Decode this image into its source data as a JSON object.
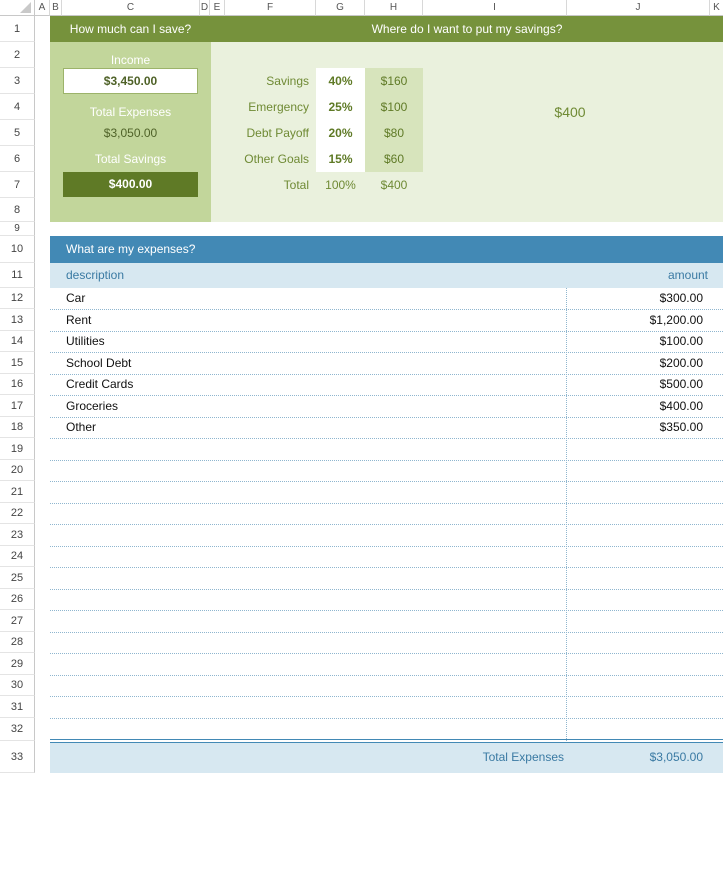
{
  "columns": [
    "A",
    "B",
    "C",
    "D",
    "E",
    "F",
    "G",
    "H",
    "I",
    "J",
    "K"
  ],
  "rows": [
    "1",
    "2",
    "3",
    "4",
    "5",
    "6",
    "7",
    "8",
    "9",
    "10",
    "11",
    "12",
    "13",
    "14",
    "15",
    "16",
    "17",
    "18",
    "19",
    "20",
    "21",
    "22",
    "23",
    "24",
    "25",
    "26",
    "27",
    "28",
    "29",
    "30",
    "31",
    "32",
    "33"
  ],
  "save_panel": {
    "title": "How much can I save?",
    "income_label": "Income",
    "income_value": "$3,450.00",
    "expenses_label": "Total Expenses",
    "expenses_value": "$3,050.00",
    "savings_label": "Total Savings",
    "savings_value": "$400.00"
  },
  "alloc_panel": {
    "title": "Where do I want to put my savings?",
    "items": [
      {
        "label": "Savings",
        "pct": "40%",
        "amt": "$160"
      },
      {
        "label": "Emergency",
        "pct": "25%",
        "amt": "$100"
      },
      {
        "label": "Debt Payoff",
        "pct": "20%",
        "amt": "$80"
      },
      {
        "label": "Other Goals",
        "pct": "15%",
        "amt": "$60"
      }
    ],
    "total_label": "Total",
    "total_pct": "100%",
    "total_amt": "$400",
    "big_total": "$400"
  },
  "expenses": {
    "title": "What are my expenses?",
    "col_desc": "description",
    "col_amount": "amount",
    "items": [
      {
        "desc": "Car",
        "amount": "$300.00"
      },
      {
        "desc": "Rent",
        "amount": "$1,200.00"
      },
      {
        "desc": "Utilities",
        "amount": "$100.00"
      },
      {
        "desc": "School Debt",
        "amount": "$200.00"
      },
      {
        "desc": "Credit Cards",
        "amount": "$500.00"
      },
      {
        "desc": "Groceries",
        "amount": "$400.00"
      },
      {
        "desc": "Other",
        "amount": "$350.00"
      }
    ],
    "total_label": "Total Expenses",
    "total_value": "$3,050.00"
  },
  "colors": {
    "green_dark": "#76923c",
    "green_mid": "#c2d69b",
    "green_light": "#eaf1dd",
    "green_deep": "#5f7a26",
    "blue_dark": "#4289b5",
    "blue_light": "#d7e8f1",
    "blue_text": "#3a7aa3"
  }
}
